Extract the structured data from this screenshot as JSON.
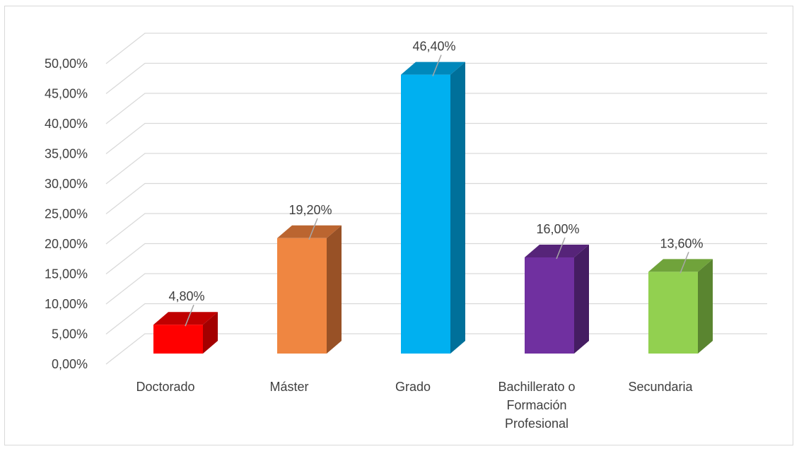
{
  "chart_data": {
    "type": "bar",
    "categories": [
      "Doctorado",
      "Máster",
      "Grado",
      "Bachillerato o Formación Profesional",
      "Secundaria"
    ],
    "category_label_lines": [
      [
        "Doctorado"
      ],
      [
        "Máster"
      ],
      [
        "Grado"
      ],
      [
        "Bachillerato o",
        "Formación",
        "Profesional"
      ],
      [
        "Secundaria"
      ]
    ],
    "values": [
      4.8,
      19.2,
      46.4,
      16.0,
      13.6
    ],
    "data_labels": [
      "4,80%",
      "19,20%",
      "46,40%",
      "16,00%",
      "13,60%"
    ],
    "y_ticks": [
      0,
      5,
      10,
      15,
      20,
      25,
      30,
      35,
      40,
      45,
      50
    ],
    "y_tick_labels": [
      "0,00%",
      "5,00%",
      "10,00%",
      "15,00%",
      "20,00%",
      "25,00%",
      "30,00%",
      "35,00%",
      "40,00%",
      "45,00%",
      "50,00%"
    ],
    "ylim": [
      0,
      50
    ],
    "grid": true,
    "legend": "none",
    "title": "",
    "xlabel": "",
    "ylabel": "",
    "bar_colors": [
      {
        "front": "#ff0000",
        "side": "#a30000",
        "top": "#c00000"
      },
      {
        "front": "#ef8641",
        "side": "#985126",
        "top": "#bb6530"
      },
      {
        "front": "#00b0f0",
        "side": "#00709a",
        "top": "#0088bb"
      },
      {
        "front": "#7030a0",
        "side": "#451d62",
        "top": "#562479"
      },
      {
        "front": "#92d050",
        "side": "#5a8530",
        "top": "#70a33b"
      }
    ]
  }
}
